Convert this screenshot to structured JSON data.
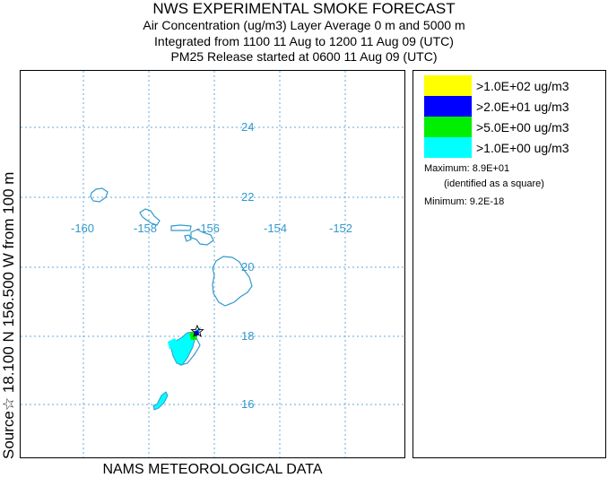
{
  "header": {
    "title": "NWS EXPERIMENTAL SMOKE FORECAST",
    "line2": "Air Concentration (ug/m3) Layer Average    0 m and  5000 m",
    "line3": "Integrated from 1100 11 Aug to 1200 11 Aug 09 (UTC)",
    "line4": "PM25 Release started at 0600 11 Aug 09 (UTC)"
  },
  "sidebar": {
    "text": "Source☆ 18.100  N 156.500  W    from  100 m"
  },
  "footer": {
    "text": "NAMS METEOROLOGICAL DATA"
  },
  "map": {
    "lon_labels": [
      "-160",
      "-158",
      "-156",
      "-154",
      "-152"
    ],
    "lat_labels": [
      "24",
      "22",
      "20",
      "18",
      "16"
    ],
    "grid_color": "#66aadd",
    "coast_color": "#3399cc",
    "source_marker": "star-icon",
    "plume_levels": [
      "cyan",
      "green",
      "blue"
    ]
  },
  "legend": {
    "items": [
      {
        "label": ">1.0E+02 ug/m3",
        "color": "#ffff00"
      },
      {
        "label": ">2.0E+01 ug/m3",
        "color": "#0000ff"
      },
      {
        "label": ">5.0E+00 ug/m3",
        "color": "#00ee00"
      },
      {
        "label": ">1.0E+00 ug/m3",
        "color": "#00ffff"
      }
    ],
    "maximum": "Maximum: 8.9E+01",
    "maximum_note": "(identified as a square)",
    "minimum": "Minimum: 9.2E-18"
  }
}
